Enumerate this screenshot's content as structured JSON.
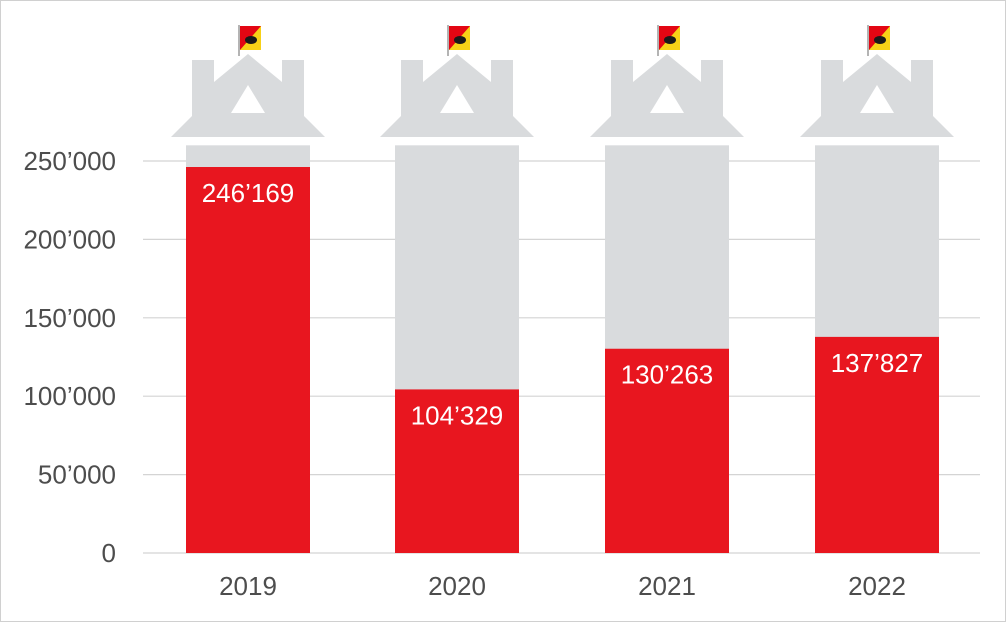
{
  "chart_data": {
    "type": "bar",
    "categories": [
      "2019",
      "2020",
      "2021",
      "2022"
    ],
    "values": [
      246169,
      104329,
      130263,
      137827
    ],
    "value_labels": [
      "246’169",
      "104’329",
      "130’263",
      "137’827"
    ],
    "capacity": 260000,
    "title": "",
    "xlabel": "",
    "ylabel": "",
    "ylim": [
      0,
      260000
    ],
    "yticks": [
      0,
      50000,
      100000,
      150000,
      200000,
      250000
    ],
    "ytick_labels": [
      "0",
      "50’000",
      "100’000",
      "150’000",
      "200’000",
      "250’000"
    ],
    "grid": true,
    "legend": "none"
  },
  "colors": {
    "bar_fill": "#e8161f",
    "house_fill": "#d9dbdd",
    "house_window": "#ffffff",
    "gridline": "#d4d4d4",
    "axis_text": "#4d4d4d",
    "data_label_text": "#ffffff",
    "flag_yellow": "#f7d117",
    "flag_red": "#e30613",
    "flag_bear": "#1a1a1a"
  },
  "icons": [
    "house-icon",
    "bern-flag-icon"
  ]
}
